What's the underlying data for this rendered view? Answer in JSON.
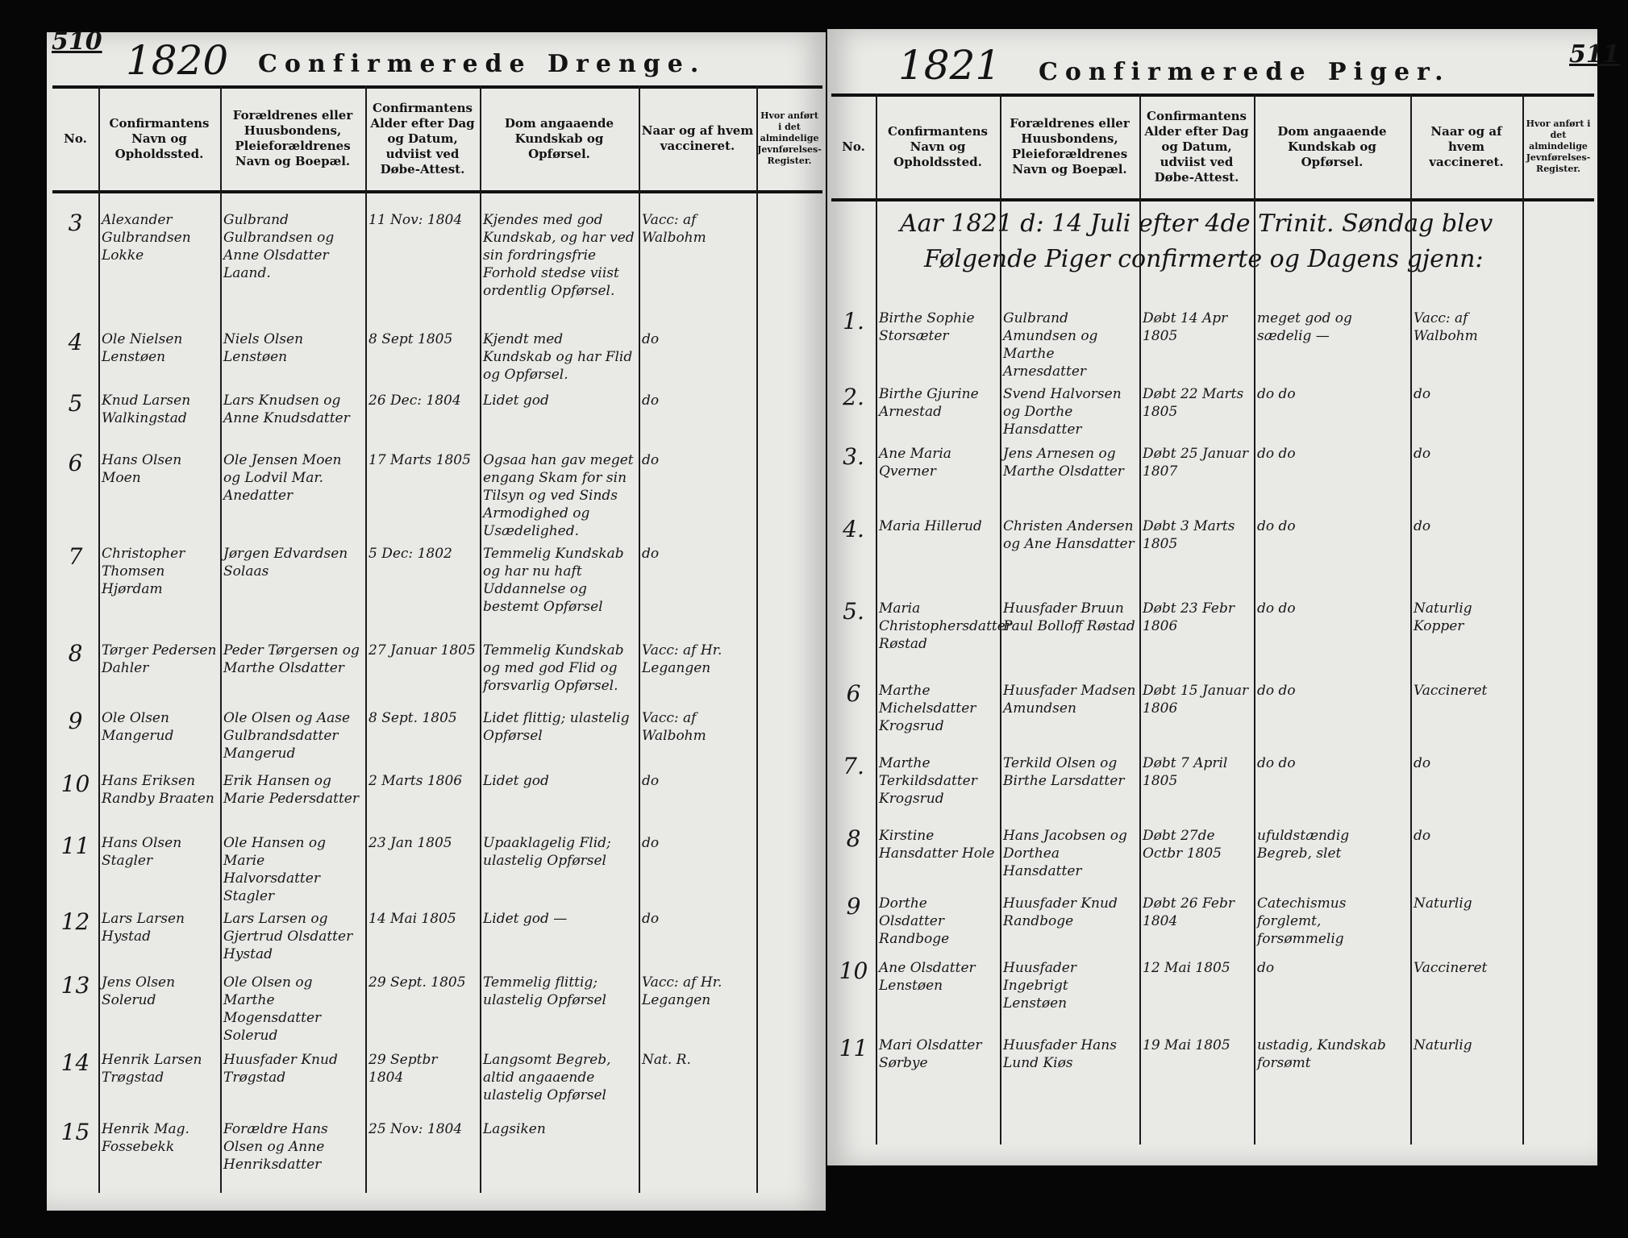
{
  "left_page": {
    "page_number": "510",
    "year": "1820",
    "title": "Confirmerede Drenge.",
    "headers": [
      "No.",
      "Confirmantens Navn og Opholdssted.",
      "Forældrenes eller Huusbondens, Pleieforældrenes Navn og Boepæl.",
      "Confirmantens Alder efter Dag og Datum, udviist ved Døbe-Attest.",
      "Dom angaaende Kundskab og Opførsel.",
      "Naar og af hvem vaccineret.",
      "Hvor anført i det almindelige Jevnførelses-Register."
    ],
    "rows": [
      {
        "no": "3",
        "name": "Alexander Gulbrandsen Lokke",
        "parents": "Gulbrand Gulbrandsen og Anne Olsdatter Laand.",
        "age": "11 Nov: 1804",
        "judgment": "Kjendes med god Kundskab, og har ved sin fordringsfrie Forhold stedse viist ordentlig Opførsel.",
        "vaccinated": "Vacc: af Walbohm"
      },
      {
        "no": "4",
        "name": "Ole Nielsen Lenstøen",
        "parents": "Niels Olsen Lenstøen",
        "age": "8 Sept 1805",
        "judgment": "Kjendt med Kundskab og har Flid og Opførsel.",
        "vaccinated": "do"
      },
      {
        "no": "5",
        "name": "Knud Larsen Walkingstad",
        "parents": "Lars Knudsen og Anne Knudsdatter",
        "age": "26 Dec: 1804",
        "judgment": "Lidet god",
        "vaccinated": "do"
      },
      {
        "no": "6",
        "name": "Hans Olsen Moen",
        "parents": "Ole Jensen Moen og Lodvil Mar. Anedatter",
        "age": "17 Marts 1805",
        "judgment": "Ogsaa han gav meget engang Skam for sin Tilsyn og ved Sinds Armodighed og Usædelighed.",
        "vaccinated": "do"
      },
      {
        "no": "7",
        "name": "Christopher Thomsen Hjørdam",
        "parents": "Jørgen Edvardsen Solaas",
        "age": "5 Dec: 1802",
        "judgment": "Temmelig Kundskab og har nu haft Uddannelse og bestemt Opførsel",
        "vaccinated": "do"
      },
      {
        "no": "8",
        "name": "Tørger Pedersen Dahler",
        "parents": "Peder Tørgersen og Marthe Olsdatter",
        "age": "27 Januar 1805",
        "judgment": "Temmelig Kundskab og med god Flid og forsvarlig Opførsel.",
        "vaccinated": "Vacc: af Hr. Legangen"
      },
      {
        "no": "9",
        "name": "Ole Olsen Mangerud",
        "parents": "Ole Olsen og Aase Gulbrandsdatter Mangerud",
        "age": "8 Sept. 1805",
        "judgment": "Lidet flittig; ulastelig Opførsel",
        "vaccinated": "Vacc: af Walbohm"
      },
      {
        "no": "10",
        "name": "Hans Eriksen Randby Braaten",
        "parents": "Erik Hansen og Marie Pedersdatter",
        "age": "2 Marts 1806",
        "judgment": "Lidet god",
        "vaccinated": "do"
      },
      {
        "no": "11",
        "name": "Hans Olsen Stagler",
        "parents": "Ole Hansen og Marie Halvorsdatter Stagler",
        "age": "23 Jan 1805",
        "judgment": "Upaaklagelig Flid; ulastelig Opførsel",
        "vaccinated": "do"
      },
      {
        "no": "12",
        "name": "Lars Larsen Hystad",
        "parents": "Lars Larsen og Gjertrud Olsdatter Hystad",
        "age": "14 Mai 1805",
        "judgment": "Lidet god —",
        "vaccinated": "do"
      },
      {
        "no": "13",
        "name": "Jens Olsen Solerud",
        "parents": "Ole Olsen og Marthe Mogensdatter Solerud",
        "age": "29 Sept. 1805",
        "judgment": "Temmelig flittig; ulastelig Opførsel",
        "vaccinated": "Vacc: af Hr. Legangen"
      },
      {
        "no": "14",
        "name": "Henrik Larsen Trøgstad",
        "parents": "Huusfader Knud Trøgstad",
        "age": "29 Septbr 1804",
        "judgment": "Langsomt Begreb, altid angaaende ulastelig Opførsel",
        "vaccinated": "Nat. R."
      },
      {
        "no": "15",
        "name": "Henrik Mag. Fossebekk",
        "parents": "Forældre Hans Olsen og Anne Henriksdatter",
        "age": "25 Nov: 1804",
        "judgment": "Lagsiken",
        "vaccinated": ""
      }
    ]
  },
  "right_page": {
    "page_number": "511",
    "year": "1821",
    "title": "Confirmerede Piger.",
    "headers": [
      "No.",
      "Confirmantens Navn og Opholdssted.",
      "Forældrenes eller Huusbondens, Pleieforældrenes Navn og Boepæl.",
      "Confirmantens Alder efter Dag og Datum, udviist ved Døbe-Attest.",
      "Dom angaaende Kundskab og Opførsel.",
      "Naar og af hvem vaccineret.",
      "Hvor anført i det almindelige Jevnførelses-Register."
    ],
    "intro_line1": "Aar 1821 d: 14 Juli efter 4de Trinit. Søndag blev",
    "intro_line2": "Følgende Piger confirmerte og Dagens gjenn:",
    "rows": [
      {
        "no": "1.",
        "name": "Birthe Sophie Storsæter",
        "parents": "Gulbrand Amundsen og Marthe Arnesdatter",
        "age": "Døbt 14 Apr 1805",
        "judgment": "meget god og sædelig —",
        "vaccinated": "Vacc: af Walbohm"
      },
      {
        "no": "2.",
        "name": "Birthe Gjurine Arnestad",
        "parents": "Svend Halvorsen og Dorthe Hansdatter",
        "age": "Døbt 22 Marts 1805",
        "judgment": "do do",
        "vaccinated": "do"
      },
      {
        "no": "3.",
        "name": "Ane Maria Qverner",
        "parents": "Jens Arnesen og Marthe Olsdatter",
        "age": "Døbt 25 Januar 1807",
        "judgment": "do do",
        "vaccinated": "do"
      },
      {
        "no": "4.",
        "name": "Maria Hillerud",
        "parents": "Christen Andersen og Ane Hansdatter",
        "age": "Døbt 3 Marts 1805",
        "judgment": "do do",
        "vaccinated": "do"
      },
      {
        "no": "5.",
        "name": "Maria Christophersdatter Røstad",
        "parents": "Huusfader Bruun Paul Bolloff Røstad",
        "age": "Døbt 23 Febr 1806",
        "judgment": "do do",
        "vaccinated": "Naturlig Kopper"
      },
      {
        "no": "6",
        "name": "Marthe Michelsdatter Krogsrud",
        "parents": "Huusfader Madsen Amundsen",
        "age": "Døbt 15 Januar 1806",
        "judgment": "do do",
        "vaccinated": "Vaccineret"
      },
      {
        "no": "7.",
        "name": "Marthe Terkildsdatter Krogsrud",
        "parents": "Terkild Olsen og Birthe Larsdatter",
        "age": "Døbt 7 April 1805",
        "judgment": "do do",
        "vaccinated": "do"
      },
      {
        "no": "8",
        "name": "Kirstine Hansdatter Hole",
        "parents": "Hans Jacobsen og Dorthea Hansdatter",
        "age": "Døbt 27de Octbr 1805",
        "judgment": "ufuldstændig Begreb, slet",
        "vaccinated": "do"
      },
      {
        "no": "9",
        "name": "Dorthe Olsdatter Randboge",
        "parents": "Huusfader Knud Randboge",
        "age": "Døbt 26 Febr 1804",
        "judgment": "Catechismus forglemt, forsømmelig",
        "vaccinated": "Naturlig"
      },
      {
        "no": "10",
        "name": "Ane Olsdatter Lenstøen",
        "parents": "Huusfader Ingebrigt Lenstøen",
        "age": "12 Mai 1805",
        "judgment": "do",
        "vaccinated": "Vaccineret"
      },
      {
        "no": "11",
        "name": "Mari Olsdatter Sørbye",
        "parents": "Huusfader Hans Lund Kiøs",
        "age": "19 Mai 1805",
        "judgment": "ustadig, Kundskab forsømt",
        "vaccinated": "Naturlig"
      }
    ]
  }
}
